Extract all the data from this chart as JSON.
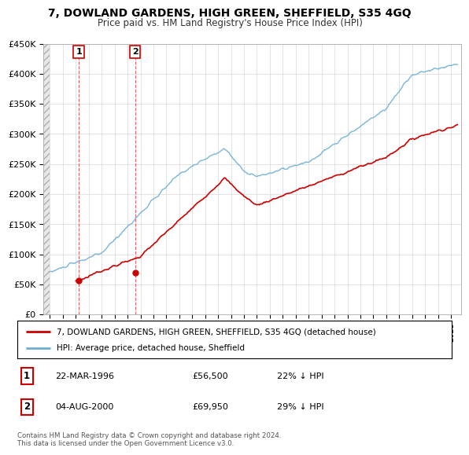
{
  "title": "7, DOWLAND GARDENS, HIGH GREEN, SHEFFIELD, S35 4GQ",
  "subtitle": "Price paid vs. HM Land Registry's House Price Index (HPI)",
  "legend_line1": "7, DOWLAND GARDENS, HIGH GREEN, SHEFFIELD, S35 4GQ (detached house)",
  "legend_line2": "HPI: Average price, detached house, Sheffield",
  "table_rows": [
    {
      "num": "1",
      "date": "22-MAR-1996",
      "price": "£56,500",
      "pct": "22% ↓ HPI"
    },
    {
      "num": "2",
      "date": "04-AUG-2000",
      "price": "£69,950",
      "pct": "29% ↓ HPI"
    }
  ],
  "footnote": "Contains HM Land Registry data © Crown copyright and database right 2024.\nThis data is licensed under the Open Government Licence v3.0.",
  "hpi_color": "#6baed6",
  "sale_color": "#cc0000",
  "vline_color": "#cc0000",
  "ylim": [
    0,
    450000
  ],
  "yticks": [
    0,
    50000,
    100000,
    150000,
    200000,
    250000,
    300000,
    350000,
    400000,
    450000
  ],
  "ytick_labels": [
    "£0",
    "£50K",
    "£100K",
    "£150K",
    "£200K",
    "£250K",
    "£300K",
    "£350K",
    "£400K",
    "£450K"
  ],
  "sale1_x": 1996.23,
  "sale1_y": 56500,
  "sale2_x": 2000.59,
  "sale2_y": 69950,
  "xmin": 1993.5,
  "xmax": 2025.8,
  "hpi_noise_seed": 10,
  "sale_noise_seed": 7
}
